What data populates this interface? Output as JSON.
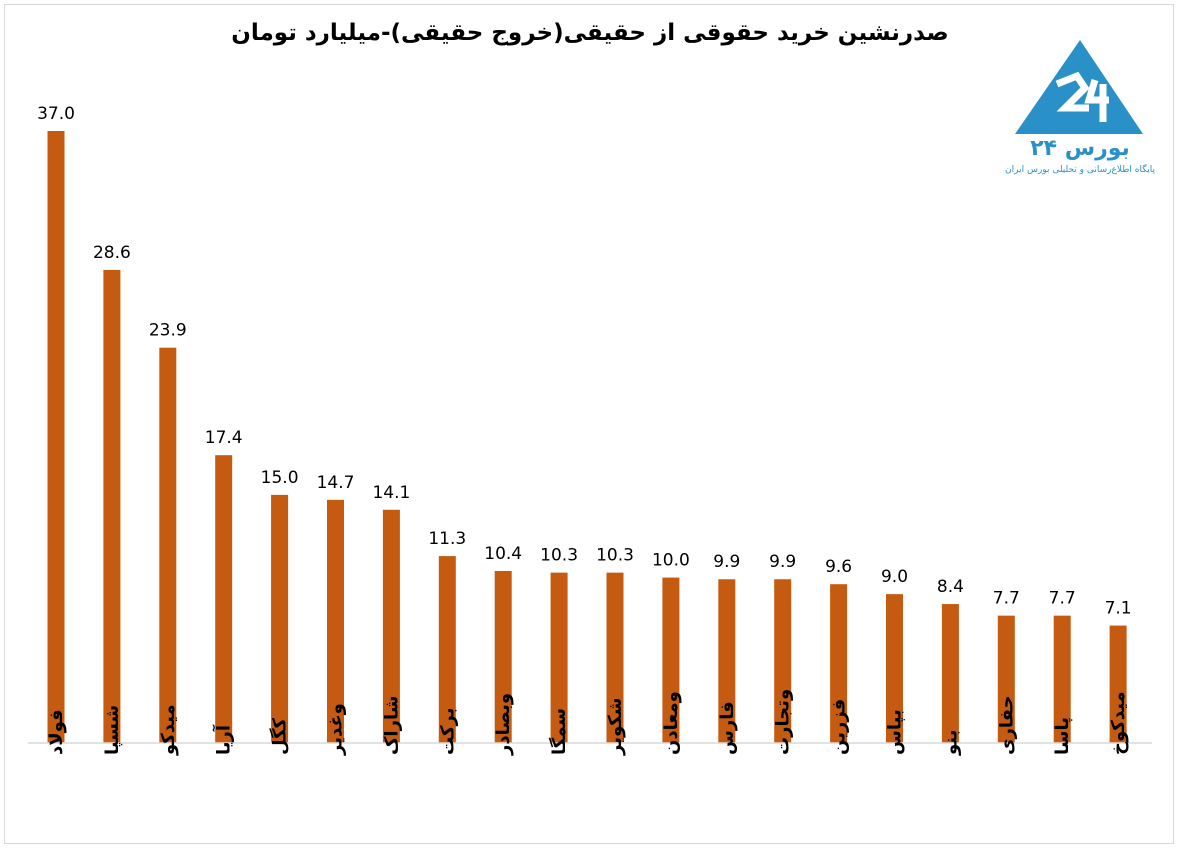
{
  "chart_data": {
    "type": "bar",
    "title": "صدرنشین خرید حقوقی از حقیقی(خروج حقیقی)-میلیارد تومان",
    "categories": [
      "فولاد",
      "شسپا",
      "میدکو",
      "آریا",
      "کگل",
      "وغدیر",
      "شاراک",
      "برکت",
      "وبصادر",
      "سمگا",
      "شکویر",
      "ومعادن",
      "فارس",
      "وتجارت",
      "فزرین",
      "بپاس",
      "بنو",
      "حفاری",
      "پاسا",
      "میدکوخ"
    ],
    "values": [
      37.0,
      28.6,
      23.9,
      17.4,
      15.0,
      14.7,
      14.1,
      11.3,
      10.4,
      10.3,
      10.3,
      10.0,
      9.9,
      9.9,
      9.6,
      9.0,
      8.4,
      7.7,
      7.7,
      7.1
    ],
    "value_labels": [
      "37.0",
      "28.6",
      "23.9",
      "17.4",
      "15.0",
      "14.7",
      "14.1",
      "11.3",
      "10.4",
      "10.3",
      "10.3",
      "10.0",
      "9.9",
      "9.9",
      "9.6",
      "9.0",
      "8.4",
      "7.7",
      "7.7",
      "7.1"
    ],
    "ylim": [
      0,
      37.0
    ],
    "grid": false,
    "legend": "none",
    "bar_color": "#c55a11",
    "axis_color": "#d9d9d9"
  },
  "logo": {
    "name": "بورس ۲۴",
    "tagline": "پایگاه اطلاع‌رسانی و تحلیلی بورس ایران",
    "color": "#2a90c8"
  }
}
